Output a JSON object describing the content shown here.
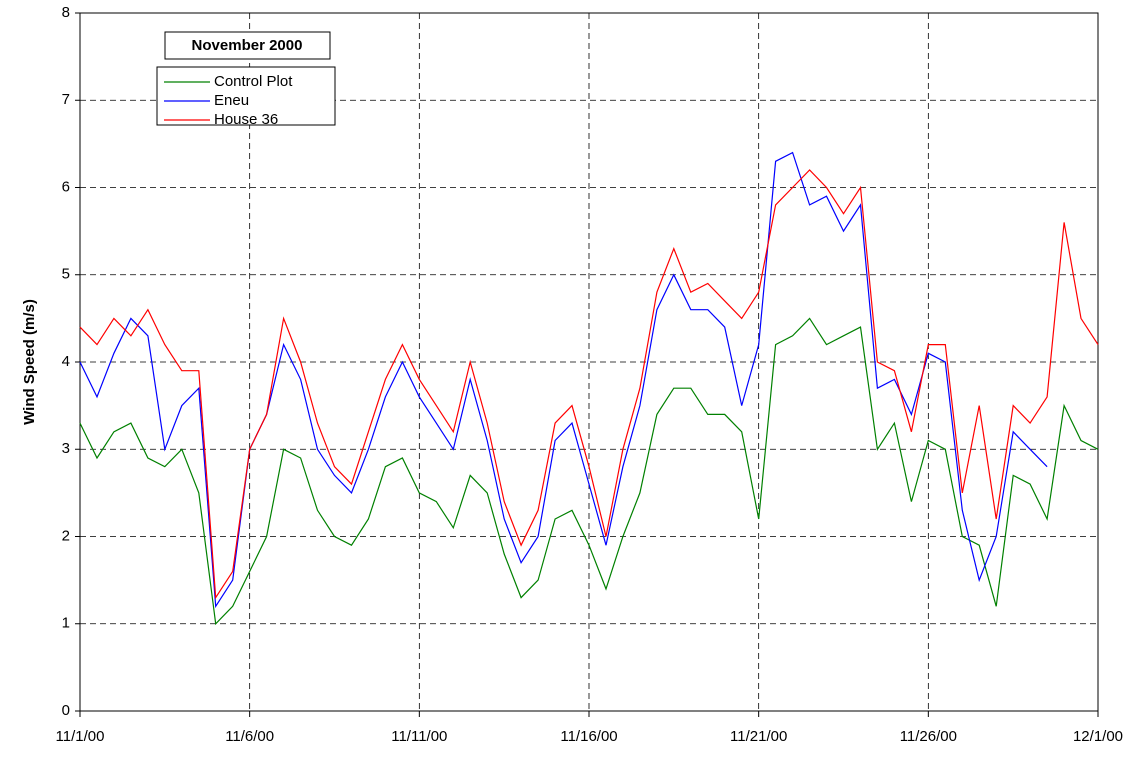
{
  "chart_data": {
    "type": "line",
    "legend_title": "November 2000",
    "y_label": "Wind Speed (m/s)",
    "legend": "upper left",
    "grid": true,
    "x": [
      0,
      0.5,
      1,
      1.5,
      2,
      2.5,
      3,
      3.5,
      4,
      4.5,
      5,
      5.5,
      6,
      6.5,
      7,
      7.5,
      8,
      8.5,
      9,
      9.5,
      10,
      10.5,
      11,
      11.5,
      12,
      12.5,
      13,
      13.5,
      14,
      14.5,
      15,
      15.5,
      16,
      16.5,
      17,
      17.5,
      18,
      18.5,
      19,
      19.5,
      20,
      20.5,
      21,
      21.5,
      22,
      22.5,
      23,
      23.5,
      24,
      24.5,
      25,
      25.5,
      26,
      26.5,
      27,
      27.5,
      28,
      28.5,
      29,
      29.5,
      30
    ],
    "xlim": [
      0,
      30
    ],
    "xticks": [
      {
        "value": 0,
        "label": "11/1/00"
      },
      {
        "value": 5,
        "label": "11/6/00"
      },
      {
        "value": 10,
        "label": "11/11/00"
      },
      {
        "value": 15,
        "label": "11/16/00"
      },
      {
        "value": 20,
        "label": "11/21/00"
      },
      {
        "value": 25,
        "label": "11/26/00"
      },
      {
        "value": 30,
        "label": "12/1/00"
      }
    ],
    "ylim": [
      0,
      8
    ],
    "yticks": [
      0,
      1,
      2,
      3,
      4,
      5,
      6,
      7,
      8
    ],
    "series": [
      {
        "name": "Control Plot",
        "color": "#008000",
        "values": [
          3.3,
          2.9,
          3.2,
          3.3,
          2.9,
          2.8,
          3.0,
          2.5,
          1.0,
          1.2,
          1.6,
          2.0,
          3.0,
          2.9,
          2.3,
          2.0,
          1.9,
          2.2,
          2.8,
          2.9,
          2.5,
          2.4,
          2.1,
          2.7,
          2.5,
          1.8,
          1.3,
          1.5,
          2.2,
          2.3,
          1.9,
          1.4,
          2.0,
          2.5,
          3.4,
          3.7,
          3.7,
          3.4,
          3.4,
          3.2,
          2.2,
          4.2,
          4.3,
          4.5,
          4.2,
          4.3,
          4.4,
          3.0,
          3.3,
          2.4,
          3.1,
          3.0,
          2.0,
          1.9,
          1.2,
          2.7,
          2.6,
          2.2,
          3.5,
          3.1,
          3.0
        ]
      },
      {
        "name": "Eneu",
        "color": "#0000ff",
        "values": [
          4.0,
          3.6,
          4.1,
          4.5,
          4.3,
          3.0,
          3.5,
          3.7,
          1.2,
          1.5,
          3.0,
          3.4,
          4.2,
          3.8,
          3.0,
          2.7,
          2.5,
          3.0,
          3.6,
          4.0,
          3.6,
          3.3,
          3.0,
          3.8,
          3.1,
          2.2,
          1.7,
          2.0,
          3.1,
          3.3,
          2.6,
          1.9,
          2.8,
          3.5,
          4.6,
          5.0,
          4.6,
          4.6,
          4.4,
          3.5,
          4.2,
          6.3,
          6.4,
          5.8,
          5.9,
          5.5,
          5.8,
          3.7,
          3.8,
          3.4,
          4.1,
          4.0,
          2.3,
          1.5,
          2.0,
          3.2,
          3.0,
          2.8,
          null,
          null,
          null
        ]
      },
      {
        "name": "House 36",
        "color": "#ff0000",
        "values": [
          4.4,
          4.2,
          4.5,
          4.3,
          4.6,
          4.2,
          3.9,
          3.9,
          1.3,
          1.6,
          3.0,
          3.4,
          4.5,
          4.0,
          3.3,
          2.8,
          2.6,
          3.2,
          3.8,
          4.2,
          3.8,
          3.5,
          3.2,
          4.0,
          3.3,
          2.4,
          1.9,
          2.3,
          3.3,
          3.5,
          2.8,
          2.0,
          3.0,
          3.7,
          4.8,
          5.3,
          4.8,
          4.9,
          4.7,
          4.5,
          4.8,
          5.8,
          6.0,
          6.2,
          6.0,
          5.7,
          6.0,
          4.0,
          3.9,
          3.2,
          4.2,
          4.2,
          2.5,
          3.5,
          2.2,
          3.5,
          3.3,
          3.6,
          5.6,
          4.5,
          4.2
        ]
      }
    ]
  }
}
